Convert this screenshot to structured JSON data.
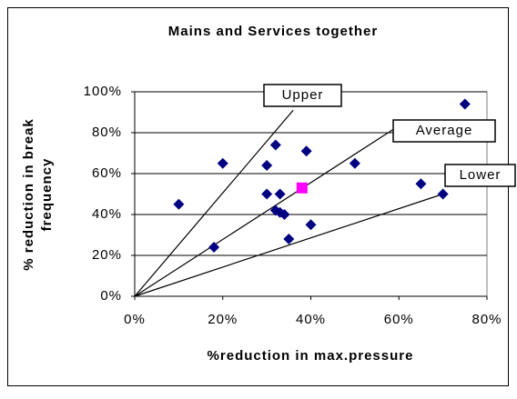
{
  "chart_data": {
    "type": "scatter",
    "title": "Mains and Services together",
    "xlabel": "%reduction in max.pressure",
    "ylabel": [
      "% reduction in break",
      "frequency"
    ],
    "xlim": [
      0,
      80
    ],
    "ylim": [
      0,
      100
    ],
    "xticks": [
      {
        "value": 0,
        "label": "0%"
      },
      {
        "value": 20,
        "label": "20%"
      },
      {
        "value": 40,
        "label": "40%"
      },
      {
        "value": 60,
        "label": "60%"
      },
      {
        "value": 80,
        "label": "80%"
      }
    ],
    "yticks": [
      {
        "value": 0,
        "label": "0%"
      },
      {
        "value": 20,
        "label": "20%"
      },
      {
        "value": 40,
        "label": "40%"
      },
      {
        "value": 60,
        "label": "60%"
      },
      {
        "value": 80,
        "label": "80%"
      },
      {
        "value": 100,
        "label": "100%"
      }
    ],
    "grid": true,
    "series": [
      {
        "color": "#000080",
        "marker": "diamond",
        "x": [
          10,
          18,
          20,
          30,
          30,
          32,
          33,
          32,
          33,
          34,
          35,
          39,
          40,
          50,
          65,
          70,
          75
        ],
        "y": [
          45,
          24,
          65,
          64,
          50,
          74,
          50,
          42,
          41,
          40,
          28,
          71,
          35,
          65,
          55,
          50,
          94
        ]
      },
      {
        "color": "#ff00ff",
        "marker": "square",
        "x": [
          38
        ],
        "y": [
          53
        ]
      }
    ],
    "lines": [
      {
        "name": "Upper",
        "color": "#000000",
        "x": [
          0,
          36
        ],
        "y": [
          0,
          91
        ]
      },
      {
        "name": "Average",
        "color": "#000000",
        "x": [
          0,
          59
        ],
        "y": [
          0,
          82
        ]
      },
      {
        "name": "Lower",
        "color": "#000000",
        "x": [
          0,
          70
        ],
        "y": [
          0,
          50
        ]
      }
    ]
  }
}
